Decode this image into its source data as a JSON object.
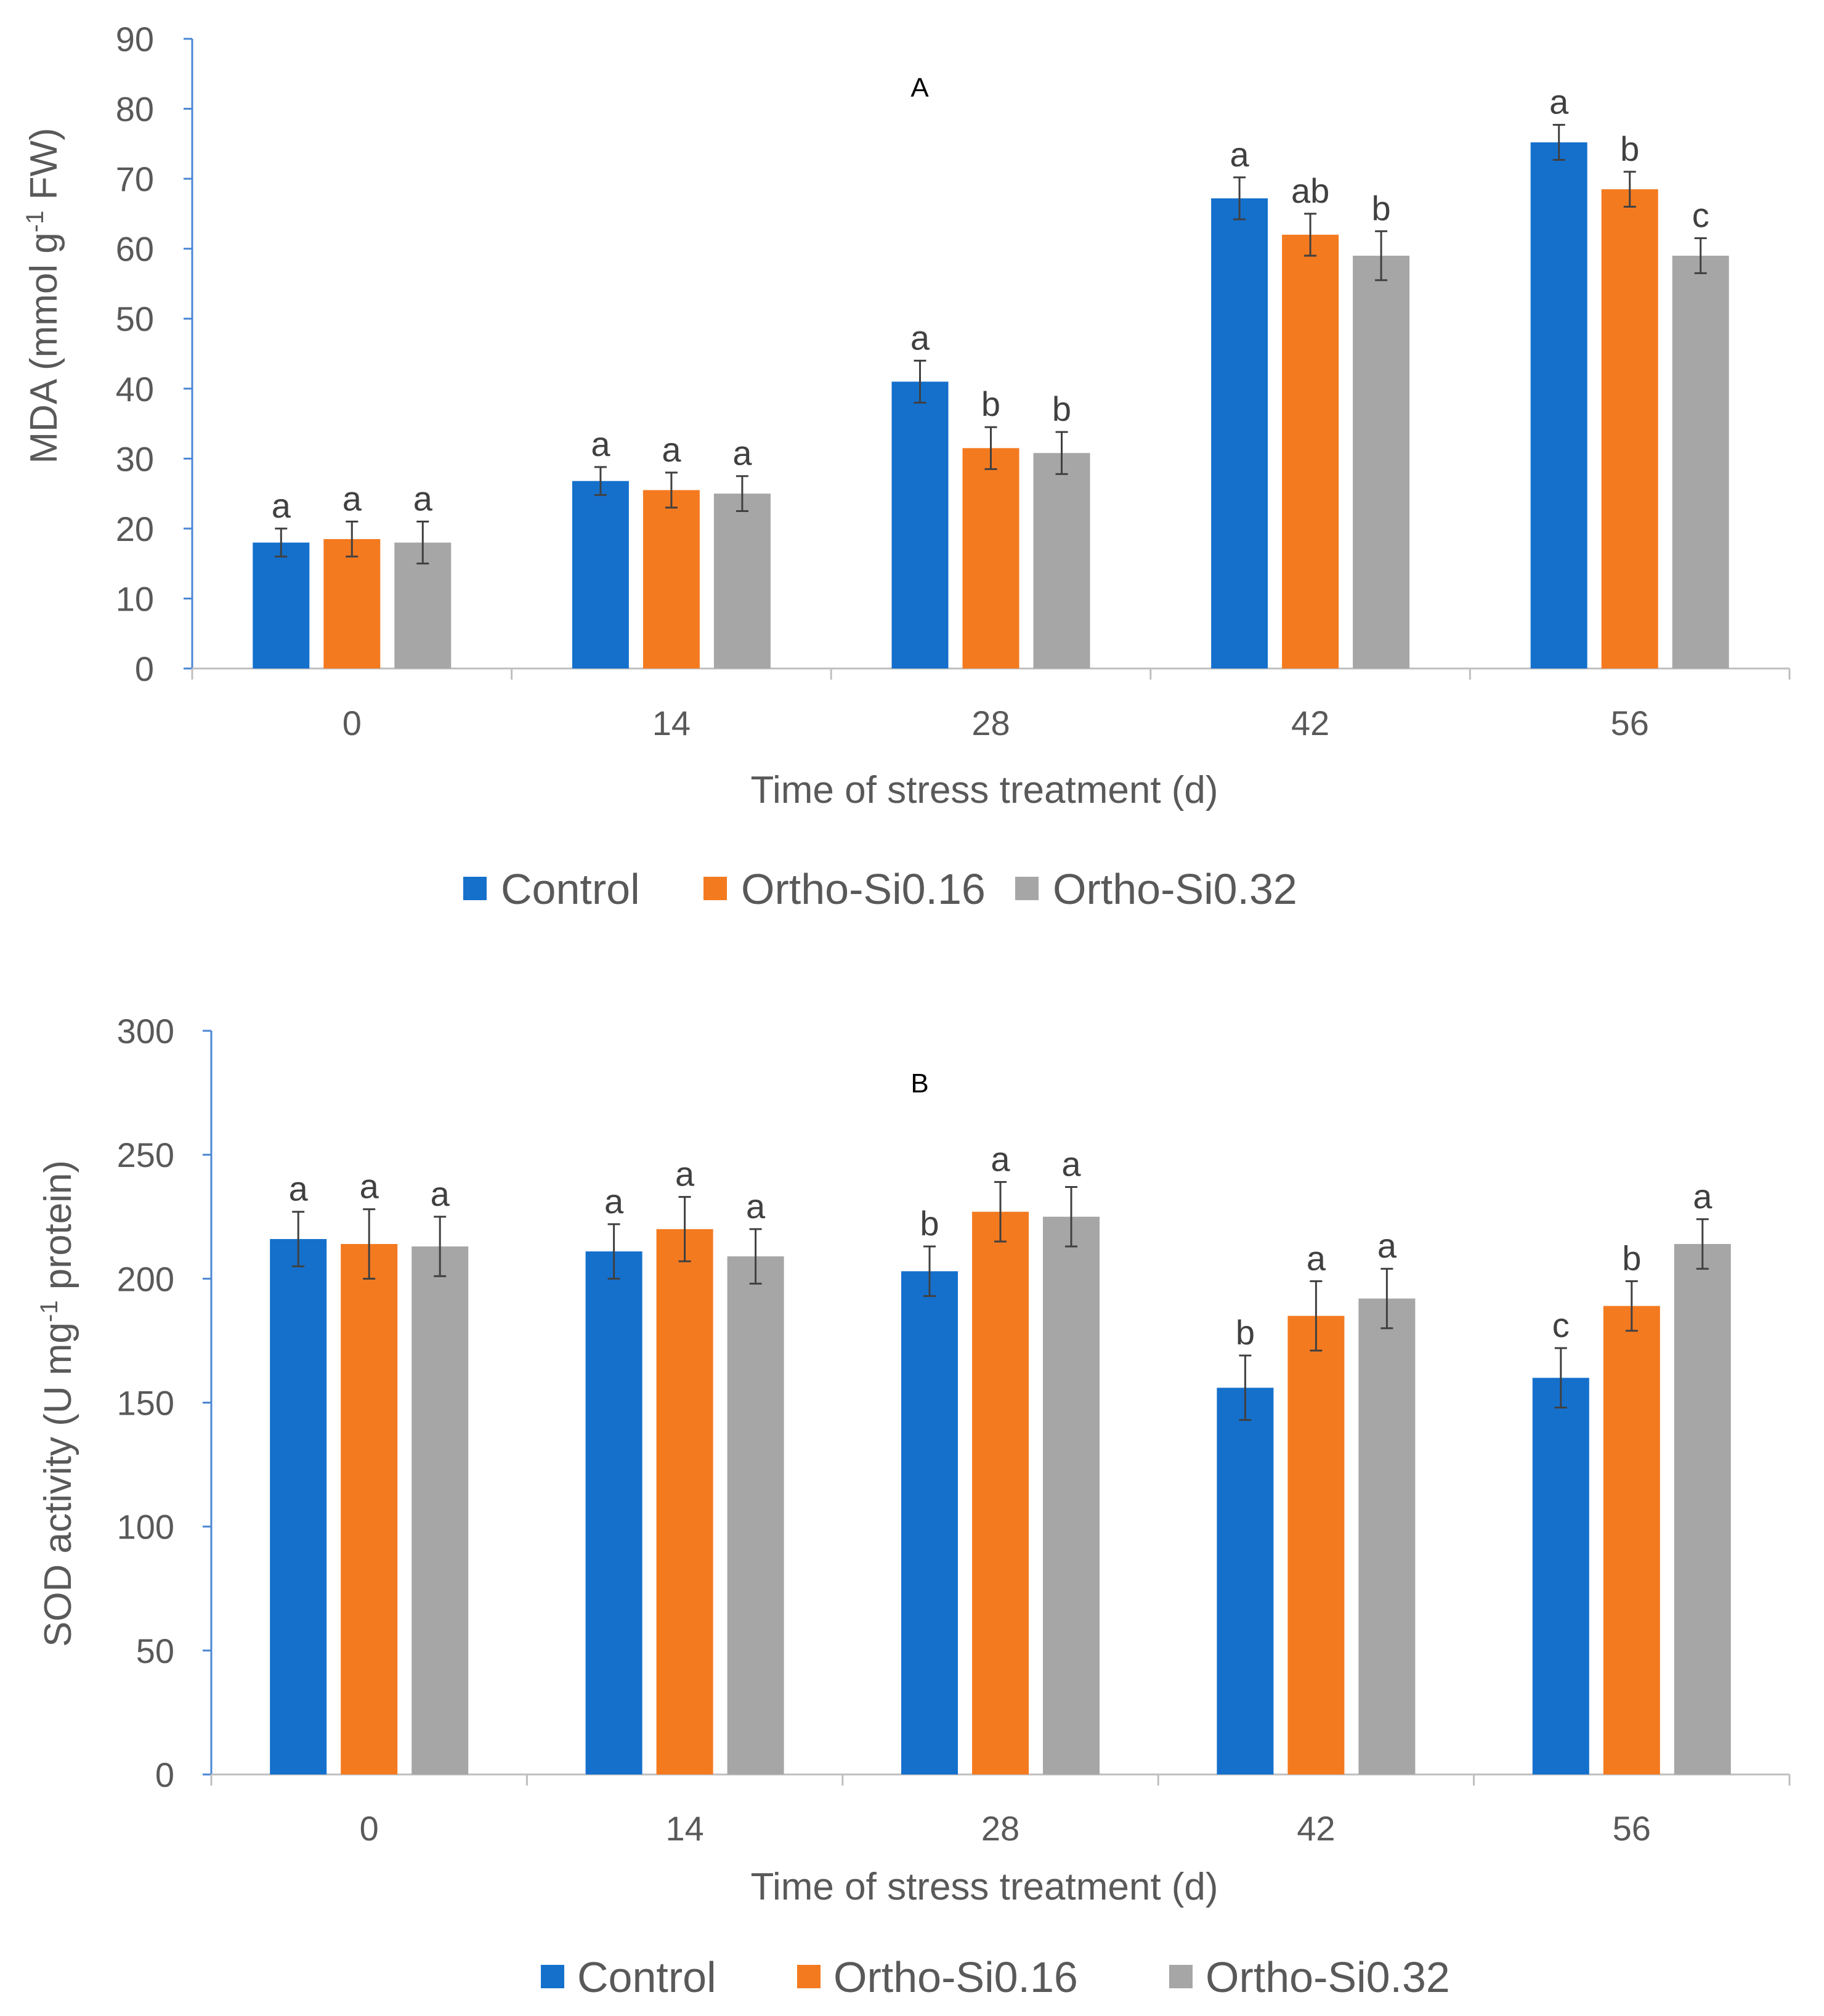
{
  "colors": {
    "Control": "#1570CC",
    "Ortho-Si0.16": "#F47A20",
    "Ortho-Si0.32": "#A6A6A6",
    "axis": "#BFBFBF",
    "yaxis": "#4A86D4",
    "text": "#595959",
    "errorbar": "#404040"
  },
  "chart_data": [
    {
      "type": "bar",
      "panel": "A",
      "title": "A",
      "xlabel": "Time of stress treatment (d)",
      "ylabel": "MDA (mmol g-1 FW)",
      "ylabel_main": "MDA (mmol g",
      "ylabel_sup": "-1",
      "ylabel_tail": " FW)",
      "ylim": [
        0,
        90
      ],
      "yticks": [
        0,
        10,
        20,
        30,
        40,
        50,
        60,
        70,
        80,
        90
      ],
      "categories": [
        "0",
        "14",
        "28",
        "42",
        "56"
      ],
      "legend_position": "bottom",
      "series": [
        {
          "name": "Control",
          "values": [
            18,
            26.8,
            41,
            67.2,
            75.2
          ],
          "errors": [
            2,
            2,
            3,
            3,
            2.5
          ],
          "letters": [
            "a",
            "a",
            "a",
            "a",
            "a"
          ]
        },
        {
          "name": "Ortho-Si0.16",
          "values": [
            18.5,
            25.5,
            31.5,
            62,
            68.5
          ],
          "errors": [
            2.5,
            2.5,
            3,
            3,
            2.5
          ],
          "letters": [
            "a",
            "a",
            "b",
            "ab",
            "b"
          ]
        },
        {
          "name": "Ortho-Si0.32",
          "values": [
            18,
            25,
            30.8,
            59,
            59
          ],
          "errors": [
            3,
            2.5,
            3,
            3.5,
            2.5
          ],
          "letters": [
            "a",
            "a",
            "b",
            "b",
            "c"
          ]
        }
      ]
    },
    {
      "type": "bar",
      "panel": "B",
      "title": "B",
      "xlabel": "Time of stress treatment (d)",
      "ylabel": "SOD activity (U mg-1 protein)",
      "ylabel_main": "SOD activity (U mg",
      "ylabel_sup": "-1",
      "ylabel_tail": " protein)",
      "ylim": [
        0,
        300
      ],
      "yticks": [
        0,
        50,
        100,
        150,
        200,
        250,
        300
      ],
      "categories": [
        "0",
        "14",
        "28",
        "42",
        "56"
      ],
      "legend_position": "bottom",
      "series": [
        {
          "name": "Control",
          "values": [
            216,
            211,
            203,
            156,
            160
          ],
          "errors": [
            11,
            11,
            10,
            13,
            12
          ],
          "letters": [
            "a",
            "a",
            "b",
            "b",
            "c"
          ]
        },
        {
          "name": "Ortho-Si0.16",
          "values": [
            214,
            220,
            227,
            185,
            189
          ],
          "errors": [
            14,
            13,
            12,
            14,
            10
          ],
          "letters": [
            "a",
            "a",
            "a",
            "a",
            "b"
          ]
        },
        {
          "name": "Ortho-Si0.32",
          "values": [
            213,
            209,
            225,
            192,
            214
          ],
          "errors": [
            12,
            11,
            12,
            12,
            10
          ],
          "letters": [
            "a",
            "a",
            "a",
            "a",
            "a"
          ]
        }
      ]
    }
  ]
}
